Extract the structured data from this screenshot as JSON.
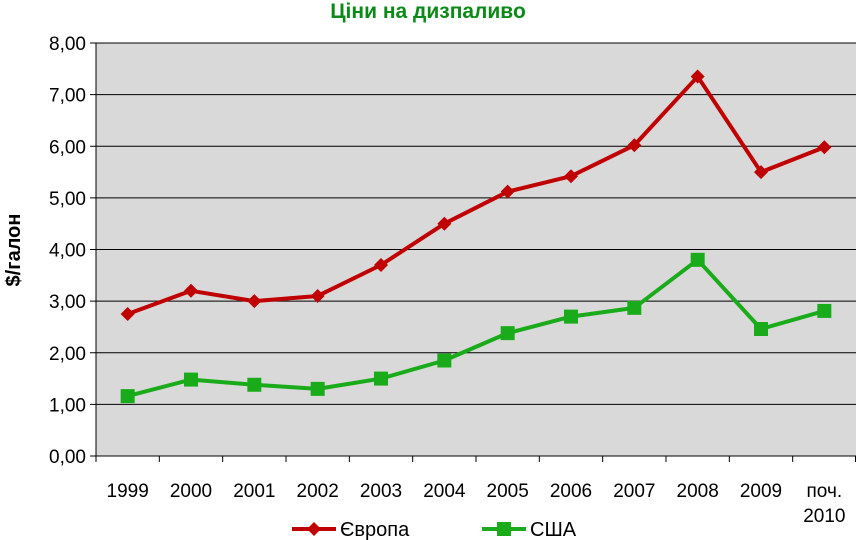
{
  "chart_data": {
    "type": "line",
    "title": "Ціни на дизпаливо",
    "xlabel": "",
    "ylabel": "$/галон",
    "categories": [
      "1999",
      "2000",
      "2001",
      "2002",
      "2003",
      "2004",
      "2005",
      "2006",
      "2007",
      "2008",
      "2009",
      "поч. 2010"
    ],
    "category_lines": [
      [
        "1999"
      ],
      [
        "2000"
      ],
      [
        "2001"
      ],
      [
        "2002"
      ],
      [
        "2003"
      ],
      [
        "2004"
      ],
      [
        "2005"
      ],
      [
        "2006"
      ],
      [
        "2007"
      ],
      [
        "2008"
      ],
      [
        "2009"
      ],
      [
        "поч.",
        "2010"
      ]
    ],
    "ylim": [
      0,
      8
    ],
    "yticks": [
      "0,00",
      "1,00",
      "2,00",
      "3,00",
      "4,00",
      "5,00",
      "6,00",
      "7,00",
      "8,00"
    ],
    "grid": true,
    "legend_position": "bottom",
    "series": [
      {
        "name": "Європа",
        "color": "#c00000",
        "marker": "diamond",
        "values": [
          2.75,
          3.2,
          3.0,
          3.1,
          3.7,
          4.5,
          5.12,
          5.42,
          6.02,
          7.35,
          5.5,
          5.98
        ]
      },
      {
        "name": "США",
        "color": "#1aab1a",
        "marker": "square",
        "values": [
          1.16,
          1.48,
          1.38,
          1.3,
          1.5,
          1.85,
          2.38,
          2.7,
          2.87,
          3.8,
          2.46,
          2.81
        ]
      }
    ],
    "plot_background": "#d9d9d9",
    "title_color": "#0b8a17"
  }
}
